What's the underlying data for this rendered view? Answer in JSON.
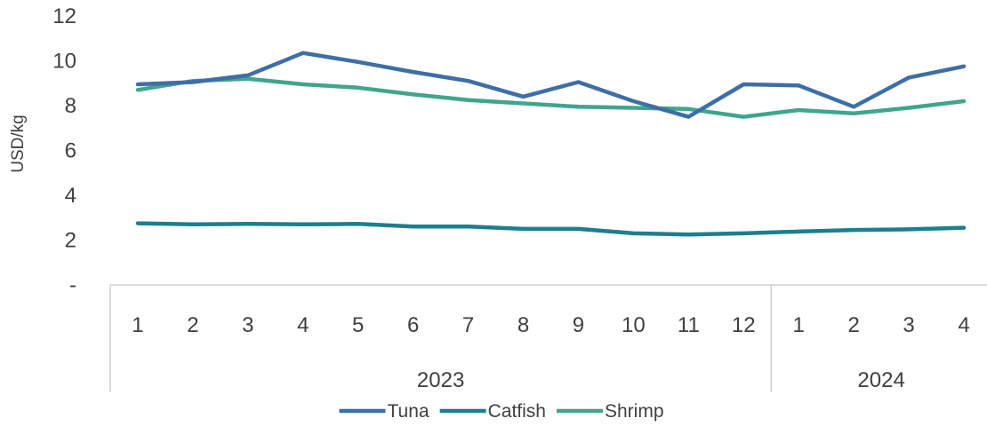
{
  "chart_data": {
    "type": "line",
    "title": "",
    "xlabel": "",
    "ylabel": "USD/kg",
    "ylim": [
      0,
      12
    ],
    "y_ticks": [
      {
        "value": 0,
        "label": "-"
      },
      {
        "value": 2,
        "label": "2"
      },
      {
        "value": 4,
        "label": "4"
      },
      {
        "value": 6,
        "label": "6"
      },
      {
        "value": 8,
        "label": "8"
      },
      {
        "value": 10,
        "label": "10"
      },
      {
        "value": 12,
        "label": "12"
      }
    ],
    "categories": [
      "1",
      "2",
      "3",
      "4",
      "5",
      "6",
      "7",
      "8",
      "9",
      "10",
      "11",
      "12",
      "1",
      "2",
      "3",
      "4"
    ],
    "groups": [
      {
        "label": "2023",
        "count": 12
      },
      {
        "label": "2024",
        "count": 4
      }
    ],
    "grid": false,
    "legend_position": "bottom",
    "series": [
      {
        "name": "Tuna",
        "color": "#3F6EA6",
        "values": [
          8.95,
          9.05,
          9.35,
          10.35,
          9.95,
          9.5,
          9.1,
          8.4,
          9.05,
          8.2,
          7.5,
          8.95,
          8.9,
          7.95,
          9.25,
          9.75
        ]
      },
      {
        "name": "Catfish",
        "color": "#1B7F8E",
        "values": [
          2.75,
          2.7,
          2.72,
          2.7,
          2.72,
          2.6,
          2.6,
          2.5,
          2.5,
          2.3,
          2.25,
          2.3,
          2.38,
          2.45,
          2.48,
          2.55
        ]
      },
      {
        "name": "Shrimp",
        "color": "#40A58D",
        "values": [
          8.7,
          9.1,
          9.2,
          8.95,
          8.8,
          8.5,
          8.25,
          8.1,
          7.95,
          7.9,
          7.85,
          7.5,
          7.8,
          7.65,
          7.9,
          8.2
        ]
      }
    ]
  }
}
